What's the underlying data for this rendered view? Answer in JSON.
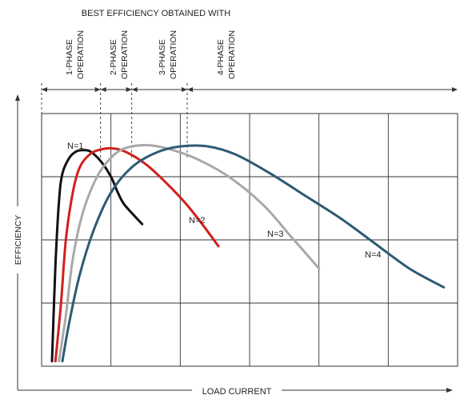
{
  "chart_data": {
    "type": "line",
    "title": "BEST EFFICIENCY OBTAINED WITH",
    "xlabel": "LOAD CURRENT",
    "ylabel": "EFFICIENCY",
    "grid": true,
    "xlim": [
      0,
      6
    ],
    "ylim": [
      0,
      4
    ],
    "operation_regions": [
      {
        "label_line1": "1-PHASE",
        "label_line2": "OPERATION",
        "from": 0,
        "to": 0.85
      },
      {
        "label_line1": "2-PHASE",
        "label_line2": "OPERATION",
        "from": 0.85,
        "to": 1.3
      },
      {
        "label_line1": "3-PHASE",
        "label_line2": "OPERATION",
        "from": 1.3,
        "to": 2.1
      },
      {
        "label_line1": "4-PHASE",
        "label_line2": "OPERATION",
        "from": 2.1,
        "to": 6
      }
    ],
    "series": [
      {
        "name": "N=1",
        "color": "#111111",
        "points": [
          [
            0.15,
            0.08
          ],
          [
            0.2,
            1.6
          ],
          [
            0.25,
            2.6
          ],
          [
            0.3,
            3.05
          ],
          [
            0.4,
            3.3
          ],
          [
            0.5,
            3.4
          ],
          [
            0.6,
            3.42
          ],
          [
            0.7,
            3.4
          ],
          [
            0.85,
            3.25
          ],
          [
            1.0,
            3.0
          ],
          [
            1.1,
            2.75
          ],
          [
            1.2,
            2.55
          ],
          [
            1.45,
            2.25
          ]
        ]
      },
      {
        "name": "N=2",
        "color": "#d0201c",
        "points": [
          [
            0.2,
            0.08
          ],
          [
            0.28,
            1.0
          ],
          [
            0.35,
            2.0
          ],
          [
            0.45,
            2.75
          ],
          [
            0.55,
            3.15
          ],
          [
            0.7,
            3.36
          ],
          [
            0.85,
            3.43
          ],
          [
            1.0,
            3.45
          ],
          [
            1.2,
            3.4
          ],
          [
            1.5,
            3.2
          ],
          [
            1.8,
            2.9
          ],
          [
            2.1,
            2.55
          ],
          [
            2.35,
            2.2
          ],
          [
            2.55,
            1.9
          ]
        ]
      },
      {
        "name": "N=3",
        "color": "#a8a8a8",
        "points": [
          [
            0.25,
            0.08
          ],
          [
            0.35,
            0.8
          ],
          [
            0.45,
            1.7
          ],
          [
            0.6,
            2.45
          ],
          [
            0.8,
            3.0
          ],
          [
            1.0,
            3.3
          ],
          [
            1.2,
            3.45
          ],
          [
            1.5,
            3.5
          ],
          [
            1.8,
            3.45
          ],
          [
            2.2,
            3.3
          ],
          [
            2.7,
            3.0
          ],
          [
            3.2,
            2.55
          ],
          [
            3.6,
            2.05
          ],
          [
            4.0,
            1.55
          ]
        ]
      },
      {
        "name": "N=4",
        "color": "#2e5a73",
        "points": [
          [
            0.3,
            0.08
          ],
          [
            0.4,
            0.7
          ],
          [
            0.55,
            1.45
          ],
          [
            0.75,
            2.15
          ],
          [
            1.0,
            2.75
          ],
          [
            1.3,
            3.15
          ],
          [
            1.65,
            3.38
          ],
          [
            2.0,
            3.48
          ],
          [
            2.4,
            3.48
          ],
          [
            2.8,
            3.35
          ],
          [
            3.3,
            3.05
          ],
          [
            3.8,
            2.7
          ],
          [
            4.3,
            2.35
          ],
          [
            4.8,
            1.95
          ],
          [
            5.3,
            1.55
          ],
          [
            5.8,
            1.25
          ]
        ]
      }
    ]
  }
}
